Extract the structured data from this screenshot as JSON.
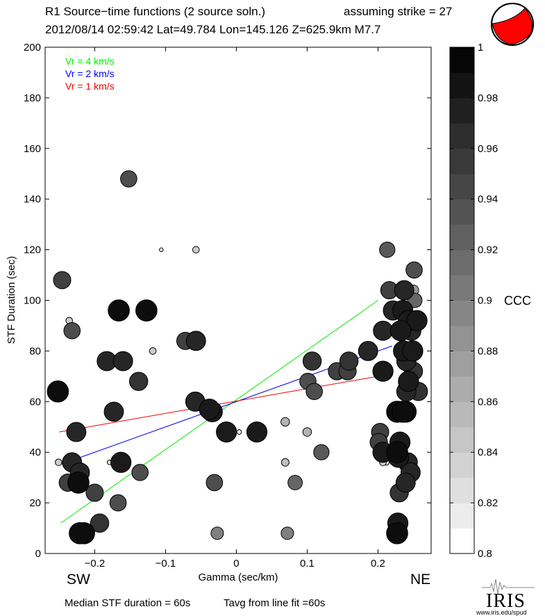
{
  "header": {
    "title_left": "R1 Source−time functions (2 source soln.)",
    "title_right": "assuming strike = 27",
    "subtitle": "2012/08/14 02:59:42  Lat=49.784 Lon=145.126  Z=625.9km  M7.7"
  },
  "footer": {
    "median": "Median STF duration = 60s",
    "tavg": "Tavg from line fit =60s",
    "logo_text": "IRIS",
    "logo_url": "www.iris.edu/spud"
  },
  "chart_data": {
    "type": "scatter",
    "xlabel": "Gamma (sec/km)",
    "ylabel": "STF Duration (sec)",
    "xlim": [
      -0.27,
      0.275
    ],
    "ylim": [
      0,
      200
    ],
    "xticks": [
      -0.2,
      -0.1,
      0,
      0.1,
      0.2
    ],
    "xtick_labels": [
      "−0.2",
      "−0.1",
      "0",
      "0.1",
      "0.2"
    ],
    "yticks": [
      0,
      20,
      40,
      60,
      80,
      100,
      120,
      140,
      160,
      180,
      200
    ],
    "side_labels": {
      "left": "SW",
      "right": "NE"
    },
    "colorbar": {
      "label": "CCC",
      "min": 0.8,
      "max": 1.0,
      "ticks": [
        0.8,
        0.82,
        0.84,
        0.86,
        0.88,
        0.9,
        0.92,
        0.94,
        0.96,
        0.98,
        1
      ],
      "tick_labels": [
        "0.8",
        "0.82",
        "0.84",
        "0.86",
        "0.88",
        "0.9",
        "0.92",
        "0.94",
        "0.96",
        "0.98",
        "1"
      ]
    },
    "lines": [
      {
        "name": "Vr = 4 km/s",
        "color": "#00ee00",
        "x": [
          -0.248,
          0.2
        ],
        "y": [
          12,
          100
        ]
      },
      {
        "name": "Vr = 2 km/s",
        "color": "#0000ee",
        "x": [
          -0.25,
          0.22
        ],
        "y": [
          35,
          82
        ]
      },
      {
        "name": "Vr = 1 km/s",
        "color": "#ee0000",
        "x": [
          -0.25,
          0.2
        ],
        "y": [
          48,
          70
        ]
      }
    ],
    "points": [
      {
        "x": -0.152,
        "y": 148,
        "c": 0.94
      },
      {
        "x": -0.106,
        "y": 120,
        "c": 0.81
      },
      {
        "x": -0.057,
        "y": 120,
        "c": 0.84
      },
      {
        "x": -0.246,
        "y": 108,
        "c": 0.95
      },
      {
        "x": -0.236,
        "y": 92,
        "c": 0.84
      },
      {
        "x": -0.232,
        "y": 88,
        "c": 0.94
      },
      {
        "x": -0.166,
        "y": 96,
        "c": 0.99
      },
      {
        "x": -0.127,
        "y": 96,
        "c": 0.99
      },
      {
        "x": -0.118,
        "y": 80,
        "c": 0.84
      },
      {
        "x": -0.183,
        "y": 76,
        "c": 0.97
      },
      {
        "x": -0.16,
        "y": 76,
        "c": 0.97
      },
      {
        "x": -0.138,
        "y": 68,
        "c": 0.96
      },
      {
        "x": -0.072,
        "y": 84,
        "c": 0.95
      },
      {
        "x": -0.057,
        "y": 84,
        "c": 0.97
      },
      {
        "x": -0.252,
        "y": 64,
        "c": 0.99
      },
      {
        "x": -0.173,
        "y": 56,
        "c": 0.97
      },
      {
        "x": -0.058,
        "y": 60,
        "c": 0.97
      },
      {
        "x": -0.034,
        "y": 56,
        "c": 0.98
      },
      {
        "x": -0.038,
        "y": 57,
        "c": 0.98
      },
      {
        "x": -0.014,
        "y": 48,
        "c": 0.98
      },
      {
        "x": 0.029,
        "y": 48,
        "c": 0.98
      },
      {
        "x": 0.004,
        "y": 48,
        "c": 0.82
      },
      {
        "x": -0.226,
        "y": 48,
        "c": 0.97
      },
      {
        "x": -0.251,
        "y": 36,
        "c": 0.84
      },
      {
        "x": -0.232,
        "y": 36,
        "c": 0.97
      },
      {
        "x": -0.221,
        "y": 32,
        "c": 0.97
      },
      {
        "x": -0.238,
        "y": 28,
        "c": 0.95
      },
      {
        "x": -0.223,
        "y": 28,
        "c": 0.99
      },
      {
        "x": -0.242,
        "y": 28,
        "c": 0.86
      },
      {
        "x": -0.223,
        "y": 36,
        "c": 0.82
      },
      {
        "x": -0.179,
        "y": 36,
        "c": 0.82
      },
      {
        "x": -0.163,
        "y": 36,
        "c": 0.98
      },
      {
        "x": -0.2,
        "y": 24,
        "c": 0.95
      },
      {
        "x": -0.136,
        "y": 32,
        "c": 0.94
      },
      {
        "x": -0.167,
        "y": 20,
        "c": 0.94
      },
      {
        "x": -0.193,
        "y": 12,
        "c": 0.96
      },
      {
        "x": -0.215,
        "y": 8,
        "c": 0.99
      },
      {
        "x": -0.221,
        "y": 8,
        "c": 0.99
      },
      {
        "x": -0.031,
        "y": 28,
        "c": 0.94
      },
      {
        "x": -0.027,
        "y": 8,
        "c": 0.9
      },
      {
        "x": 0.069,
        "y": 52,
        "c": 0.86
      },
      {
        "x": 0.069,
        "y": 36,
        "c": 0.85
      },
      {
        "x": 0.072,
        "y": 8,
        "c": 0.9
      },
      {
        "x": 0.1,
        "y": 48,
        "c": 0.86
      },
      {
        "x": 0.083,
        "y": 28,
        "c": 0.92
      },
      {
        "x": 0.12,
        "y": 40,
        "c": 0.93
      },
      {
        "x": 0.101,
        "y": 68,
        "c": 0.94
      },
      {
        "x": 0.11,
        "y": 64,
        "c": 0.94
      },
      {
        "x": 0.107,
        "y": 76,
        "c": 0.96
      },
      {
        "x": 0.142,
        "y": 72,
        "c": 0.95
      },
      {
        "x": 0.157,
        "y": 72,
        "c": 0.95
      },
      {
        "x": 0.159,
        "y": 76,
        "c": 0.96
      },
      {
        "x": 0.186,
        "y": 80,
        "c": 0.97
      },
      {
        "x": 0.207,
        "y": 88,
        "c": 0.97
      },
      {
        "x": 0.207,
        "y": 72,
        "c": 0.98
      },
      {
        "x": 0.213,
        "y": 120,
        "c": 0.93
      },
      {
        "x": 0.216,
        "y": 104,
        "c": 0.95
      },
      {
        "x": 0.237,
        "y": 104,
        "c": 0.97
      },
      {
        "x": 0.251,
        "y": 112,
        "c": 0.94
      },
      {
        "x": 0.25,
        "y": 104,
        "c": 0.88
      },
      {
        "x": 0.252,
        "y": 100,
        "c": 0.92
      },
      {
        "x": 0.221,
        "y": 96,
        "c": 0.97
      },
      {
        "x": 0.235,
        "y": 96,
        "c": 0.98
      },
      {
        "x": 0.243,
        "y": 92,
        "c": 0.98
      },
      {
        "x": 0.255,
        "y": 92,
        "c": 0.98
      },
      {
        "x": 0.232,
        "y": 88,
        "c": 0.98
      },
      {
        "x": 0.247,
        "y": 88,
        "c": 0.97
      },
      {
        "x": 0.236,
        "y": 80,
        "c": 0.98
      },
      {
        "x": 0.249,
        "y": 80,
        "c": 0.98
      },
      {
        "x": 0.24,
        "y": 76,
        "c": 0.97
      },
      {
        "x": 0.25,
        "y": 72,
        "c": 0.96
      },
      {
        "x": 0.243,
        "y": 68,
        "c": 0.98
      },
      {
        "x": 0.257,
        "y": 64,
        "c": 0.96
      },
      {
        "x": 0.24,
        "y": 64,
        "c": 0.97
      },
      {
        "x": 0.227,
        "y": 56,
        "c": 0.99
      },
      {
        "x": 0.239,
        "y": 56,
        "c": 0.99
      },
      {
        "x": 0.235,
        "y": 56,
        "c": 0.99
      },
      {
        "x": 0.203,
        "y": 48,
        "c": 0.95
      },
      {
        "x": 0.201,
        "y": 44,
        "c": 0.95
      },
      {
        "x": 0.231,
        "y": 44,
        "c": 0.98
      },
      {
        "x": 0.207,
        "y": 40,
        "c": 0.98
      },
      {
        "x": 0.227,
        "y": 40,
        "c": 0.99
      },
      {
        "x": 0.229,
        "y": 38,
        "c": 0.98
      },
      {
        "x": 0.207,
        "y": 36,
        "c": 0.84
      },
      {
        "x": 0.212,
        "y": 36,
        "c": 0.83
      },
      {
        "x": 0.217,
        "y": 40,
        "c": 0.81
      },
      {
        "x": 0.242,
        "y": 36,
        "c": 0.97
      },
      {
        "x": 0.25,
        "y": 36,
        "c": 0.81
      },
      {
        "x": 0.244,
        "y": 36,
        "c": 0.81
      },
      {
        "x": 0.252,
        "y": 36,
        "c": 0.81
      },
      {
        "x": 0.246,
        "y": 32,
        "c": 0.97
      },
      {
        "x": 0.239,
        "y": 28,
        "c": 0.97
      },
      {
        "x": 0.23,
        "y": 24,
        "c": 0.96
      },
      {
        "x": 0.228,
        "y": 12,
        "c": 0.98
      },
      {
        "x": 0.227,
        "y": 8,
        "c": 0.99
      }
    ]
  },
  "colors": {
    "beachball_fill": "#ff0000",
    "beachball_outline": "#000000"
  }
}
